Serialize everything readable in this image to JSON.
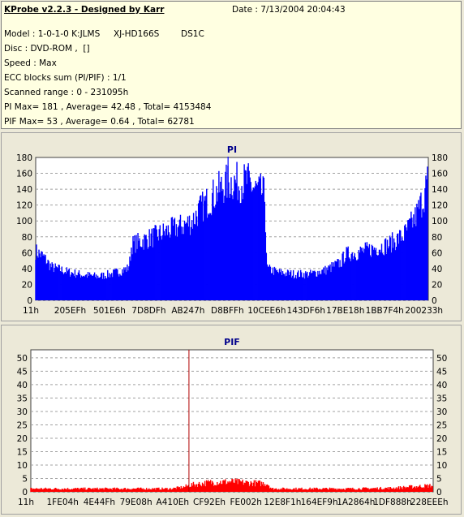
{
  "header": {
    "title": "KProbe v2.2.3 - Designed by Karr",
    "date": "Date : 7/13/2004 20:04:43",
    "model": "Model : 1-0-1-0 K:JLMS     XJ-HD166S        DS1C",
    "disc": "Disc : DVD-ROM ,  []",
    "speed": "Speed : Max",
    "ecc": "ECC blocks sum (PI/PIF) : 1/1",
    "range": "Scanned range : 0 - 231095h",
    "pi_stats": "PI Max= 181 , Average= 42.48 , Total= 4153484",
    "pif_stats": "PIF Max= 53 , Average= 0.64 , Total= 62781"
  },
  "colors": {
    "pi_fill": "#0000ff",
    "pif_fill": "#ff0000",
    "plot_bg": "#ffffff",
    "grid": "#a0a0a0"
  },
  "chart_data": [
    {
      "type": "area",
      "title": "PI",
      "ylim": [
        0,
        180
      ],
      "yticks": [
        "0",
        "20",
        "40",
        "60",
        "80",
        "100",
        "120",
        "140",
        "160",
        "180"
      ],
      "xticks": [
        "11h",
        "205EFh",
        "501E6h",
        "7D8DFh",
        "AB247h",
        "D8BFFh",
        "10CEE6h",
        "143DF6h",
        "17BE18h",
        "1BB7F4h",
        "200233h"
      ],
      "profile": [
        [
          0,
          62
        ],
        [
          0.02,
          55
        ],
        [
          0.04,
          42
        ],
        [
          0.08,
          36
        ],
        [
          0.12,
          32
        ],
        [
          0.16,
          30
        ],
        [
          0.2,
          34
        ],
        [
          0.235,
          40
        ],
        [
          0.24,
          48
        ],
        [
          0.245,
          70
        ],
        [
          0.3,
          80
        ],
        [
          0.34,
          88
        ],
        [
          0.38,
          95
        ],
        [
          0.4,
          100
        ],
        [
          0.42,
          115
        ],
        [
          0.44,
          125
        ],
        [
          0.46,
          135
        ],
        [
          0.48,
          145
        ],
        [
          0.5,
          150
        ],
        [
          0.52,
          148
        ],
        [
          0.54,
          150
        ],
        [
          0.56,
          140
        ],
        [
          0.58,
          135
        ],
        [
          0.585,
          130
        ],
        [
          0.59,
          40
        ],
        [
          0.62,
          35
        ],
        [
          0.66,
          33
        ],
        [
          0.7,
          33
        ],
        [
          0.74,
          38
        ],
        [
          0.78,
          48
        ],
        [
          0.79,
          58
        ],
        [
          0.82,
          60
        ],
        [
          0.86,
          65
        ],
        [
          0.9,
          70
        ],
        [
          0.94,
          82
        ],
        [
          0.97,
          105
        ],
        [
          0.99,
          130
        ],
        [
          1.0,
          150
        ]
      ],
      "max": 181
    },
    {
      "type": "area",
      "title": "PIF",
      "ylim": [
        0,
        53
      ],
      "yticks": [
        "0",
        "5",
        "10",
        "15",
        "20",
        "25",
        "30",
        "35",
        "40",
        "45",
        "50"
      ],
      "xticks": [
        "11h",
        "1FE04h",
        "4E44Fh",
        "79E08h",
        "A410Eh",
        "CF92Eh",
        "FE002h",
        "12E8F1h",
        "164EF9h",
        "1A2864h",
        "1DF888h",
        "228EEEh"
      ],
      "profile": [
        [
          0,
          1
        ],
        [
          0.35,
          1
        ],
        [
          0.38,
          1.5
        ],
        [
          0.4,
          2.2
        ],
        [
          0.45,
          3
        ],
        [
          0.5,
          3.2
        ],
        [
          0.55,
          2.8
        ],
        [
          0.59,
          2.6
        ],
        [
          0.6,
          1
        ],
        [
          0.8,
          1
        ],
        [
          0.9,
          1.2
        ],
        [
          1.0,
          2
        ]
      ],
      "spike": {
        "x": 0.393,
        "value": 53
      }
    }
  ]
}
